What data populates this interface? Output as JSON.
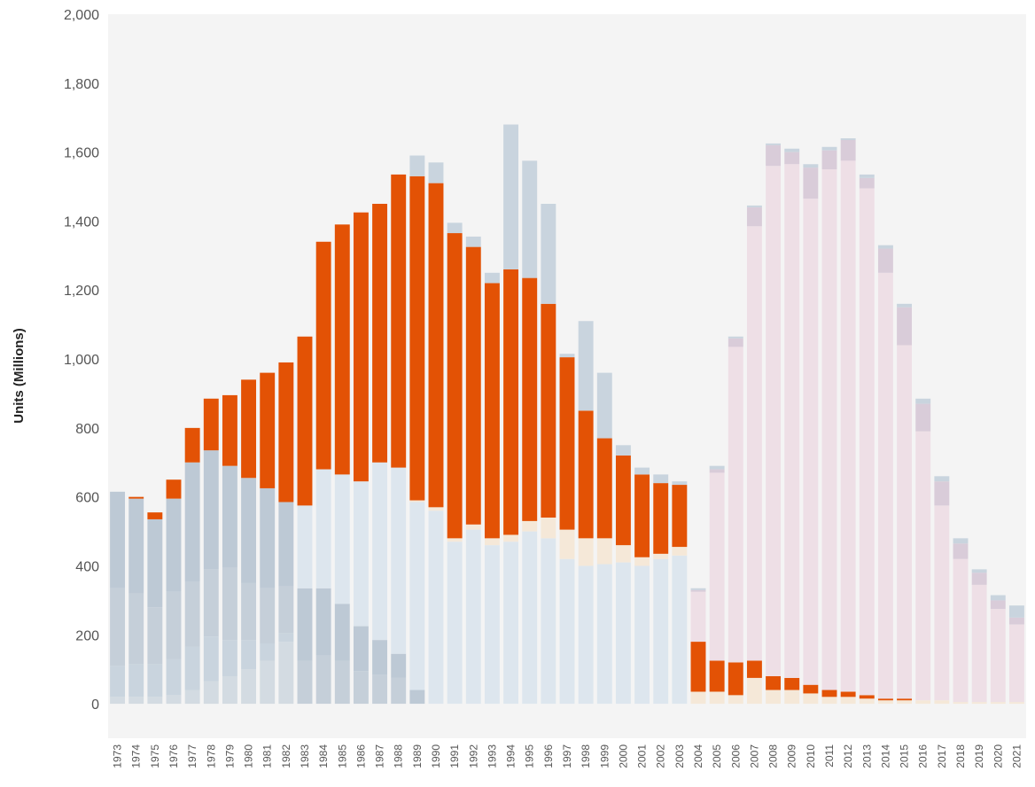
{
  "chart_data": {
    "type": "bar",
    "stacked": true,
    "title": "",
    "xlabel": "",
    "ylabel": "Units (Millions)",
    "ylim": [
      -100,
      2000
    ],
    "yticks": [
      0,
      200,
      400,
      600,
      800,
      1000,
      1200,
      1400,
      1600,
      1800,
      2000
    ],
    "ytick_labels": [
      "0",
      "200",
      "400",
      "600",
      "800",
      "1,000",
      "1,200",
      "1,400",
      "1,600",
      "1,800",
      "2,000"
    ],
    "grid": false,
    "categories": [
      "1973",
      "1974",
      "1975",
      "1976",
      "1977",
      "1978",
      "1979",
      "1980",
      "1981",
      "1982",
      "1983",
      "1984",
      "1985",
      "1986",
      "1987",
      "1988",
      "1989",
      "1990",
      "1991",
      "1992",
      "1993",
      "1994",
      "1995",
      "1996",
      "1997",
      "1998",
      "1999",
      "2000",
      "2001",
      "2002",
      "2003",
      "2004",
      "2005",
      "2006",
      "2007",
      "2008",
      "2009",
      "2010",
      "2011",
      "2012",
      "2013",
      "2014",
      "2015",
      "2016",
      "2017",
      "2018",
      "2019",
      "2020",
      "2021"
    ],
    "highlighted_series": "Series 7",
    "series": [
      {
        "color": "#d3dbe2",
        "values": [
          20,
          20,
          20,
          25,
          40,
          65,
          80,
          100,
          125,
          180,
          0,
          0,
          0,
          0,
          0,
          0,
          0,
          0,
          0,
          0,
          0,
          0,
          0,
          0,
          0,
          0,
          0,
          0,
          0,
          0,
          0,
          0,
          0,
          0,
          0,
          0,
          0,
          0,
          0,
          0,
          0,
          0,
          0,
          0,
          0,
          0,
          0,
          0,
          0
        ]
      },
      {
        "color": "#c9d4de",
        "values": [
          90,
          95,
          95,
          105,
          125,
          130,
          105,
          85,
          50,
          25,
          0,
          0,
          0,
          0,
          0,
          0,
          0,
          0,
          0,
          0,
          0,
          0,
          0,
          0,
          0,
          0,
          0,
          0,
          0,
          0,
          0,
          0,
          0,
          0,
          0,
          0,
          0,
          0,
          0,
          0,
          0,
          0,
          0,
          0,
          0,
          0,
          0,
          0,
          0
        ]
      },
      {
        "color": "#c5cfd9",
        "values": [
          225,
          205,
          165,
          195,
          190,
          195,
          210,
          165,
          160,
          135,
          125,
          140,
          125,
          95,
          85,
          75,
          0,
          0,
          0,
          0,
          0,
          0,
          0,
          0,
          0,
          0,
          0,
          0,
          0,
          0,
          0,
          0,
          0,
          0,
          0,
          0,
          0,
          0,
          0,
          0,
          0,
          0,
          0,
          0,
          0,
          0,
          0,
          0,
          0
        ]
      },
      {
        "color": "#bdc9d5",
        "values": [
          280,
          275,
          255,
          270,
          345,
          345,
          295,
          305,
          290,
          245,
          210,
          195,
          165,
          130,
          100,
          70,
          40,
          0,
          0,
          0,
          0,
          0,
          0,
          0,
          0,
          0,
          0,
          0,
          0,
          0,
          0,
          0,
          0,
          0,
          0,
          0,
          0,
          0,
          0,
          0,
          0,
          0,
          0,
          0,
          0,
          0,
          0,
          0,
          0
        ]
      },
      {
        "color": "#dde6ee",
        "values": [
          0,
          0,
          0,
          0,
          0,
          0,
          0,
          0,
          0,
          0,
          240,
          345,
          375,
          420,
          515,
          540,
          545,
          560,
          470,
          505,
          460,
          470,
          500,
          480,
          420,
          400,
          405,
          410,
          400,
          420,
          430,
          0,
          0,
          0,
          0,
          0,
          0,
          0,
          0,
          0,
          0,
          0,
          0,
          0,
          0,
          0,
          0,
          0,
          0
        ]
      },
      {
        "color": "#f5e8d8",
        "values": [
          0,
          0,
          0,
          0,
          0,
          0,
          0,
          0,
          0,
          0,
          0,
          0,
          0,
          0,
          0,
          0,
          5,
          10,
          10,
          15,
          20,
          20,
          30,
          60,
          85,
          80,
          75,
          50,
          25,
          15,
          25,
          35,
          35,
          25,
          75,
          40,
          40,
          30,
          20,
          20,
          15,
          10,
          10,
          10,
          10,
          5,
          5,
          5,
          5
        ]
      },
      {
        "color": "#e35205",
        "values": [
          0,
          5,
          20,
          55,
          100,
          150,
          205,
          285,
          335,
          405,
          490,
          660,
          725,
          780,
          750,
          850,
          940,
          940,
          885,
          805,
          740,
          770,
          705,
          620,
          500,
          370,
          290,
          260,
          240,
          205,
          180,
          145,
          90,
          95,
          50,
          40,
          35,
          25,
          20,
          15,
          10,
          5,
          5,
          0,
          0,
          0,
          0,
          0,
          0
        ]
      },
      {
        "color": "#eedfe6",
        "values": [
          0,
          0,
          0,
          0,
          0,
          0,
          0,
          0,
          0,
          0,
          0,
          0,
          0,
          0,
          0,
          0,
          0,
          0,
          0,
          0,
          0,
          0,
          0,
          0,
          0,
          0,
          0,
          0,
          0,
          0,
          0,
          145,
          545,
          915,
          1260,
          1480,
          1490,
          1410,
          1510,
          1540,
          1470,
          1235,
          1025,
          780,
          565,
          415,
          340,
          270,
          225
        ]
      },
      {
        "color": "#d9ccd9",
        "values": [
          0,
          0,
          0,
          0,
          0,
          0,
          0,
          0,
          0,
          0,
          0,
          0,
          0,
          0,
          0,
          0,
          0,
          0,
          0,
          0,
          0,
          0,
          0,
          0,
          0,
          0,
          0,
          0,
          0,
          0,
          0,
          5,
          10,
          25,
          55,
          60,
          35,
          90,
          55,
          60,
          30,
          70,
          110,
          80,
          70,
          45,
          35,
          25,
          20
        ]
      },
      {
        "color": "#c9d4de",
        "values": [
          0,
          0,
          0,
          0,
          0,
          0,
          0,
          0,
          0,
          0,
          0,
          0,
          0,
          0,
          0,
          0,
          60,
          60,
          30,
          30,
          30,
          420,
          340,
          290,
          10,
          260,
          190,
          30,
          20,
          25,
          10,
          5,
          10,
          5,
          5,
          5,
          10,
          10,
          10,
          5,
          10,
          10,
          10,
          15,
          15,
          15,
          10,
          15,
          35
        ]
      }
    ]
  }
}
